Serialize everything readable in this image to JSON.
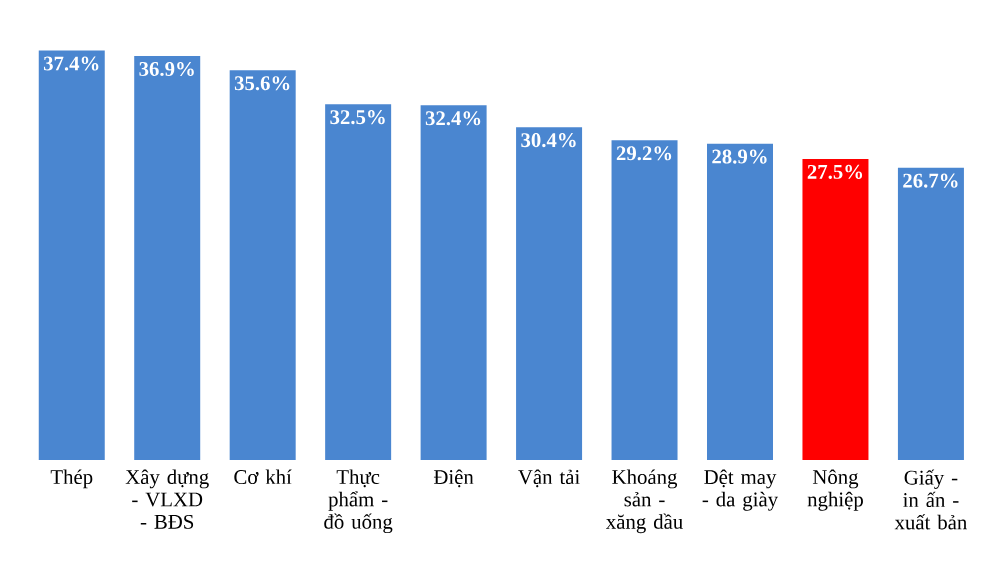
{
  "chart_data": {
    "type": "bar",
    "categories": [
      "Thép",
      "Xây dựng - VLXD - BĐS",
      "Cơ khí",
      "Thực phẩm - đồ uống",
      "Điện",
      "Vận tải",
      "Khoáng sản - xăng dầu",
      "Dệt may - da giày",
      "Nông nghiệp",
      "Giấy - in ấn - xuất bản"
    ],
    "values": [
      37.4,
      36.9,
      35.6,
      32.5,
      32.4,
      30.4,
      29.2,
      28.9,
      27.5,
      26.7
    ],
    "value_labels": [
      "37.4%",
      "36.9%",
      "35.6%",
      "32.5%",
      "32.4%",
      "30.4%",
      "29.2%",
      "28.9%",
      "27.5%",
      "26.7%"
    ],
    "colors": [
      "#4a86d0",
      "#4a86d0",
      "#4a86d0",
      "#4a86d0",
      "#4a86d0",
      "#4a86d0",
      "#4a86d0",
      "#4a86d0",
      "#ff0000",
      "#4a86d0"
    ],
    "tick_labels": "x"
  }
}
